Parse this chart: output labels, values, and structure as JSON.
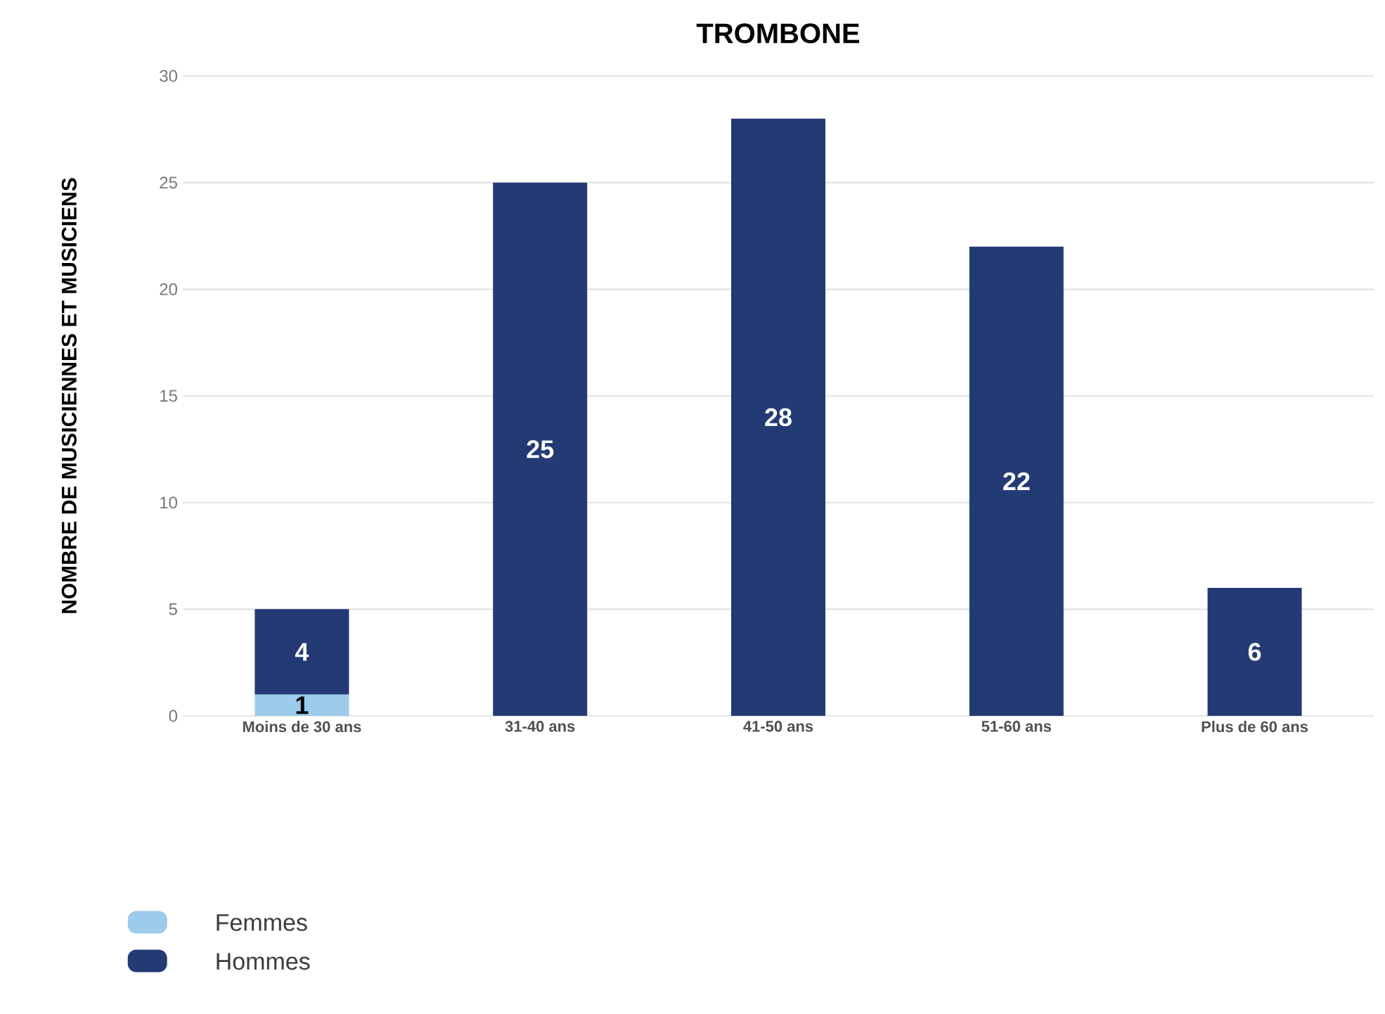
{
  "chart_data": {
    "type": "bar",
    "title": "TROMBONE",
    "ylabel": "NOMBRE DE MUSICIENNES ET MUSICIENS",
    "categories": [
      "Moins de 30 ans",
      "31-40 ans",
      "41-50 ans",
      "51-60 ans",
      "Plus de 60 ans"
    ],
    "series": [
      {
        "name": "Femmes",
        "color": "#9ccbec",
        "values": [
          1,
          0,
          0,
          0,
          0
        ],
        "value_labels": [
          "1",
          null,
          null,
          null,
          null
        ]
      },
      {
        "name": "Hommes",
        "color": "#233a75",
        "values": [
          4,
          25,
          28,
          22,
          6
        ],
        "value_labels": [
          "4",
          "25",
          "28",
          "22",
          "6"
        ]
      }
    ],
    "stacked": true,
    "ylim": [
      0,
      30
    ],
    "yticks": [
      0,
      5,
      10,
      15,
      20,
      25,
      30
    ],
    "grid": "y",
    "legend": "bottom left"
  }
}
